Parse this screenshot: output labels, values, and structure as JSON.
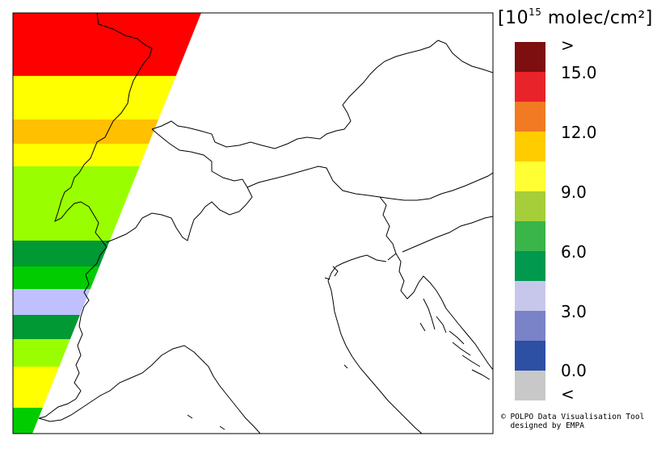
{
  "legend": {
    "unit_prefix": "[10",
    "unit_exp": "15",
    "unit_suffix": " molec/cm²]",
    "colors": [
      "#7d0f10",
      "#e8232a",
      "#f27a22",
      "#ffcc00",
      "#ffff33",
      "#a6ce39",
      "#39b54a",
      "#00994d",
      "#c7c7ec",
      "#7a82c8",
      "#2d4fa4",
      "#c8c8c8"
    ],
    "labels": [
      ">",
      "15.0",
      "12.0",
      "9.0",
      "6.0",
      "3.0",
      "0.0",
      "<"
    ]
  },
  "credit": {
    "line1": "© POLPO Data Visualisation Tool",
    "line2": "  designed by EMPA"
  },
  "swath": {
    "bands": [
      {
        "color": "#ff0000"
      },
      {
        "color": "#ffff00"
      },
      {
        "color": "#ffc000"
      },
      {
        "color": "#ffff00"
      },
      {
        "color": "#99ff00"
      },
      {
        "color": "#009933"
      },
      {
        "color": "#00cc00"
      },
      {
        "color": "#c0c0ff"
      },
      {
        "color": "#009933"
      },
      {
        "color": "#99ff00"
      },
      {
        "color": "#ffff00"
      },
      {
        "color": "#00cc00"
      }
    ]
  }
}
